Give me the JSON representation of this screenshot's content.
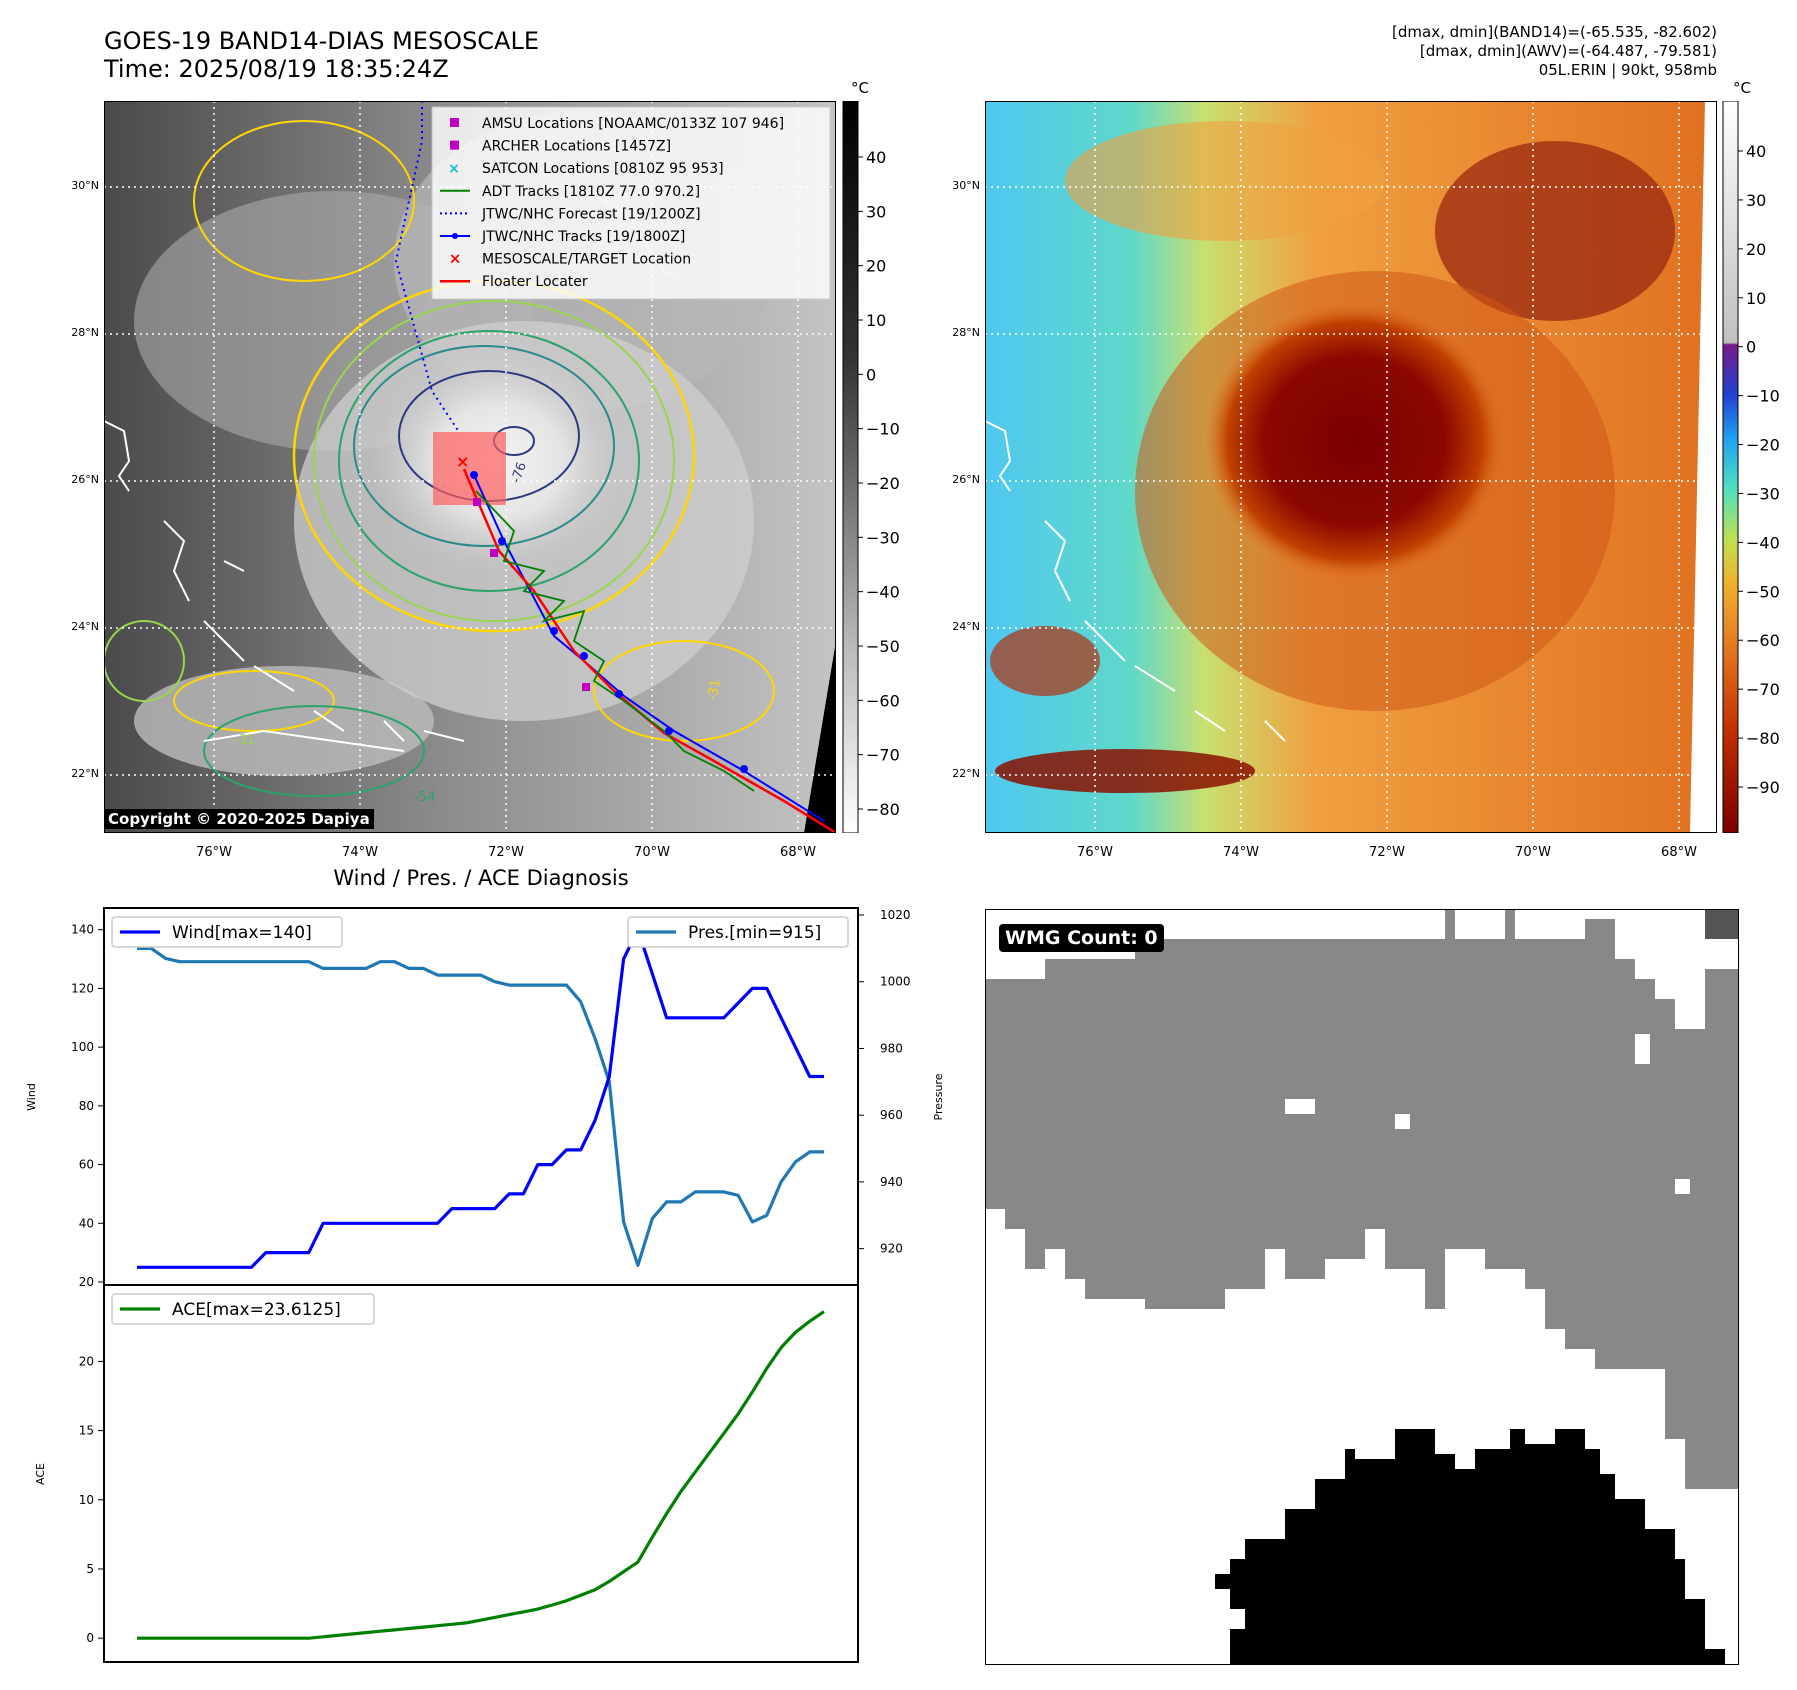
{
  "header": {
    "title": "GOES-19 BAND14-DIAS MESOSCALE",
    "time": "Time: 2025/08/19 18:35:24Z",
    "stats_band14": "[dmax, dmin](BAND14)=(-65.535, -82.602)",
    "stats_awv": "[dmax, dmin](AWV)=(-64.487, -79.581)",
    "storm_info": "05L.ERIN | 90kt, 958mb"
  },
  "maps": {
    "lon_ticks": [
      "76°W",
      "74°W",
      "72°W",
      "70°W",
      "68°W"
    ],
    "lat_ticks": [
      "30°N",
      "28°N",
      "26°N",
      "24°N",
      "22°N"
    ],
    "copyright": "Copyright © 2020-2025 Dapiya",
    "contour_labels": [
      "-76",
      "-31",
      "-31",
      "-54"
    ],
    "legend": [
      {
        "label": "AMSU Locations [NOAAMC/0133Z 107 946]",
        "color": "#c000c0"
      },
      {
        "label": "ARCHER Locations [1457Z]",
        "color": "#c000c0"
      },
      {
        "label": "SATCON Locations [0810Z 95 953]",
        "color": "#17becf"
      },
      {
        "label": "ADT Tracks [1810Z 77.0 970.2]",
        "color": "#008000"
      },
      {
        "label": "JTWC/NHC Forecast [19/1200Z]",
        "color": "#0000ff"
      },
      {
        "label": "JTWC/NHC Tracks [19/1800Z]",
        "color": "#0000ff"
      },
      {
        "label": "MESOSCALE/TARGET Location",
        "color": "#ff0000"
      },
      {
        "label": "Floater Locater",
        "color": "#ff0000"
      }
    ],
    "gray_colorbar": {
      "unit": "°C",
      "ticks": [
        "40",
        "30",
        "20",
        "10",
        "0",
        "−10",
        "−20",
        "−30",
        "−40",
        "−50",
        "−60",
        "−70",
        "−80"
      ]
    },
    "color_colorbar": {
      "unit": "°C",
      "ticks": [
        "40",
        "30",
        "20",
        "10",
        "0",
        "−10",
        "−20",
        "−30",
        "−40",
        "−50",
        "−60",
        "−70",
        "−80",
        "−90"
      ]
    }
  },
  "wmg": {
    "label": "WMG Count: 0"
  },
  "chart_data": [
    {
      "type": "line",
      "title": "Wind / Pres. / ACE Diagnosis",
      "ylabel": "Wind",
      "ylabel_right": "Pressure",
      "ylim": [
        20,
        145
      ],
      "ylim_right": [
        910,
        1020
      ],
      "yticks": [
        20,
        40,
        60,
        80,
        100,
        120,
        140
      ],
      "yticks_right": [
        920,
        940,
        960,
        980,
        1000,
        1020
      ],
      "series": [
        {
          "name": "Wind[max=140]",
          "color": "#0000ff",
          "axis": "left",
          "values": [
            25,
            25,
            25,
            25,
            25,
            25,
            25,
            25,
            25,
            30,
            30,
            30,
            30,
            40,
            40,
            40,
            40,
            40,
            40,
            40,
            40,
            40,
            45,
            45,
            45,
            45,
            50,
            50,
            60,
            60,
            65,
            65,
            75,
            90,
            130,
            140,
            125,
            110,
            110,
            110,
            110,
            110,
            115,
            120,
            120,
            110,
            100,
            90,
            90
          ]
        },
        {
          "name": "Pres.[min=915]",
          "color": "#1f77b4",
          "axis": "right",
          "values": [
            1010,
            1010,
            1007,
            1006,
            1006,
            1006,
            1006,
            1006,
            1006,
            1006,
            1006,
            1006,
            1006,
            1004,
            1004,
            1004,
            1004,
            1006,
            1006,
            1004,
            1004,
            1002,
            1002,
            1002,
            1002,
            1000,
            999,
            999,
            999,
            999,
            999,
            994,
            983,
            970,
            928,
            915,
            929,
            934,
            934,
            937,
            937,
            937,
            936,
            928,
            930,
            940,
            946,
            949,
            949
          ]
        }
      ]
    },
    {
      "type": "line",
      "ylabel": "ACE",
      "ylim": [
        -1,
        24.8
      ],
      "yticks": [
        0,
        5,
        10,
        15,
        20
      ],
      "series": [
        {
          "name": "ACE[max=23.6125]",
          "color": "#008000",
          "values": [
            0,
            0,
            0,
            0,
            0,
            0,
            0,
            0,
            0,
            0,
            0,
            0,
            0,
            0.1,
            0.2,
            0.3,
            0.4,
            0.5,
            0.6,
            0.7,
            0.8,
            0.9,
            1.0,
            1.1,
            1.3,
            1.5,
            1.7,
            1.9,
            2.1,
            2.4,
            2.7,
            3.1,
            3.5,
            4.1,
            4.8,
            5.5,
            7.3,
            9.0,
            10.6,
            12.0,
            13.4,
            14.8,
            16.2,
            17.8,
            19.5,
            21.0,
            22.1,
            22.9,
            23.6
          ]
        }
      ]
    }
  ]
}
